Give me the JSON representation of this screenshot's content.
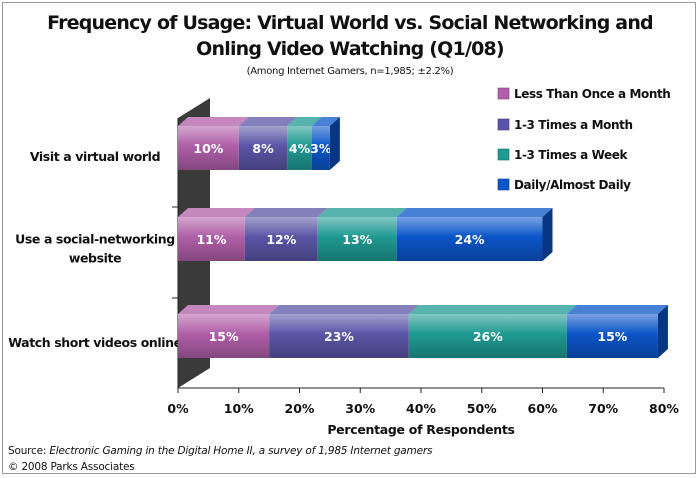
{
  "title_line1": "Frequency of Usage: Virtual World vs. Social Networking and",
  "title_line2": "Onling Video Watching (Q1/08)",
  "subtitle": "(Among Internet Gamers, n=1,985; ±2.2%)",
  "source_prefix": "Source: ",
  "source_italic": "Electronic Gaming in the Digital Home II, a survey of 1,985 Internet gamers",
  "copyright": "© 2008 Parks Associates",
  "chart_data": {
    "type": "bar",
    "orientation": "horizontal",
    "stacked": true,
    "style": "3d",
    "categories": [
      "Visit a virtual world",
      "Use a social-networking website",
      "Watch short videos online"
    ],
    "category_label_lines": [
      [
        "Visit a virtual world"
      ],
      [
        "Use a social-networking",
        "website"
      ],
      [
        "Watch short videos online"
      ]
    ],
    "series": [
      {
        "name": "Less Than Once a Month",
        "values": [
          10,
          11,
          15
        ],
        "labels": [
          "10%",
          "11%",
          "15%"
        ],
        "color": "#b05fa8"
      },
      {
        "name": "1-3 Times a Month",
        "values": [
          8,
          12,
          23
        ],
        "labels": [
          "8%",
          "12%",
          "23%"
        ],
        "color": "#5a55a6"
      },
      {
        "name": "1-3 Times a Week",
        "values": [
          4,
          13,
          26
        ],
        "labels": [
          "4%",
          "13%",
          "26%"
        ],
        "color": "#1f9a92"
      },
      {
        "name": "Daily/Almost Daily",
        "values": [
          3,
          24,
          15
        ],
        "labels": [
          "3%",
          "24%",
          "15%"
        ],
        "color": "#0b55c8"
      }
    ],
    "xlabel": "Percentage of Respondents",
    "ylabel": "",
    "xlim": [
      0,
      80
    ],
    "xticks": [
      0,
      10,
      20,
      30,
      40,
      50,
      60,
      70,
      80
    ],
    "xtick_labels": [
      "0%",
      "10%",
      "20%",
      "30%",
      "40%",
      "50%",
      "60%",
      "70%",
      "80%"
    ],
    "grid": false,
    "legend_position": "top-right"
  }
}
